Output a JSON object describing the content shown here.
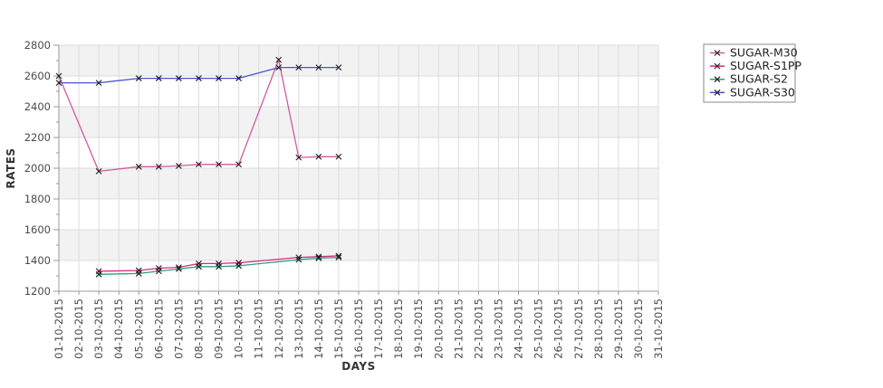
{
  "chart_data": {
    "type": "line",
    "title": "",
    "xlabel": "DAYS",
    "ylabel": "RATES",
    "ylim": [
      1200,
      2800
    ],
    "y_ticks": [
      1200,
      1400,
      1600,
      1800,
      2000,
      2200,
      2400,
      2600,
      2800
    ],
    "y_minor_step": 100,
    "grid": true,
    "band_fill": "#f2f2f2",
    "grid_color": "#dcdcdc",
    "axis_color": "#999999",
    "marker": "x",
    "marker_color": "#1c1c1c",
    "legend_position": "top-right",
    "x_categories": [
      "01-10-2015",
      "02-10-2015",
      "03-10-2015",
      "04-10-2015",
      "05-10-2015",
      "06-10-2015",
      "07-10-2015",
      "08-10-2015",
      "09-10-2015",
      "10-10-2015",
      "11-10-2015",
      "12-10-2015",
      "13-10-2015",
      "14-10-2015",
      "15-10-2015",
      "16-10-2015",
      "17-10-2015",
      "18-10-2015",
      "19-10-2015",
      "20-10-2015",
      "21-10-2015",
      "22-10-2015",
      "23-10-2015",
      "24-10-2015",
      "25-10-2015",
      "26-10-2015",
      "27-10-2015",
      "28-10-2015",
      "29-10-2015",
      "30-10-2015",
      "31-10-2015"
    ],
    "series": [
      {
        "name": "SUGAR-M30",
        "color": "#cd5ba4",
        "points": [
          [
            "01-10-2015",
            2600
          ],
          [
            "03-10-2015",
            1980
          ],
          [
            "05-10-2015",
            2010
          ],
          [
            "06-10-2015",
            2010
          ],
          [
            "07-10-2015",
            2015
          ],
          [
            "08-10-2015",
            2025
          ],
          [
            "09-10-2015",
            2025
          ],
          [
            "10-10-2015",
            2025
          ],
          [
            "12-10-2015",
            2705
          ],
          [
            "13-10-2015",
            2070
          ],
          [
            "14-10-2015",
            2075
          ],
          [
            "15-10-2015",
            2075
          ]
        ]
      },
      {
        "name": "SUGAR-S1PP",
        "color": "#dc2680",
        "points": [
          [
            "03-10-2015",
            1330
          ],
          [
            "05-10-2015",
            1335
          ],
          [
            "06-10-2015",
            1350
          ],
          [
            "07-10-2015",
            1355
          ],
          [
            "08-10-2015",
            1380
          ],
          [
            "09-10-2015",
            1380
          ],
          [
            "10-10-2015",
            1385
          ],
          [
            "13-10-2015",
            1420
          ],
          [
            "14-10-2015",
            1425
          ],
          [
            "15-10-2015",
            1430
          ]
        ]
      },
      {
        "name": "SUGAR-S2",
        "color": "#2f9e7e",
        "points": [
          [
            "03-10-2015",
            1310
          ],
          [
            "05-10-2015",
            1315
          ],
          [
            "06-10-2015",
            1330
          ],
          [
            "07-10-2015",
            1345
          ],
          [
            "08-10-2015",
            1360
          ],
          [
            "09-10-2015",
            1360
          ],
          [
            "10-10-2015",
            1365
          ],
          [
            "13-10-2015",
            1405
          ],
          [
            "14-10-2015",
            1415
          ],
          [
            "15-10-2015",
            1420
          ]
        ]
      },
      {
        "name": "SUGAR-S30",
        "color": "#4753cb",
        "points": [
          [
            "01-10-2015",
            2555
          ],
          [
            "03-10-2015",
            2555
          ],
          [
            "05-10-2015",
            2585
          ],
          [
            "06-10-2015",
            2585
          ],
          [
            "07-10-2015",
            2585
          ],
          [
            "08-10-2015",
            2585
          ],
          [
            "09-10-2015",
            2585
          ],
          [
            "10-10-2015",
            2585
          ],
          [
            "12-10-2015",
            2655
          ],
          [
            "13-10-2015",
            2655
          ],
          [
            "14-10-2015",
            2655
          ],
          [
            "15-10-2015",
            2655
          ]
        ]
      }
    ],
    "legend_labels": [
      "SUGAR-M30",
      "SUGAR-S1PP",
      "SUGAR-S2",
      "SUGAR-S30"
    ]
  }
}
